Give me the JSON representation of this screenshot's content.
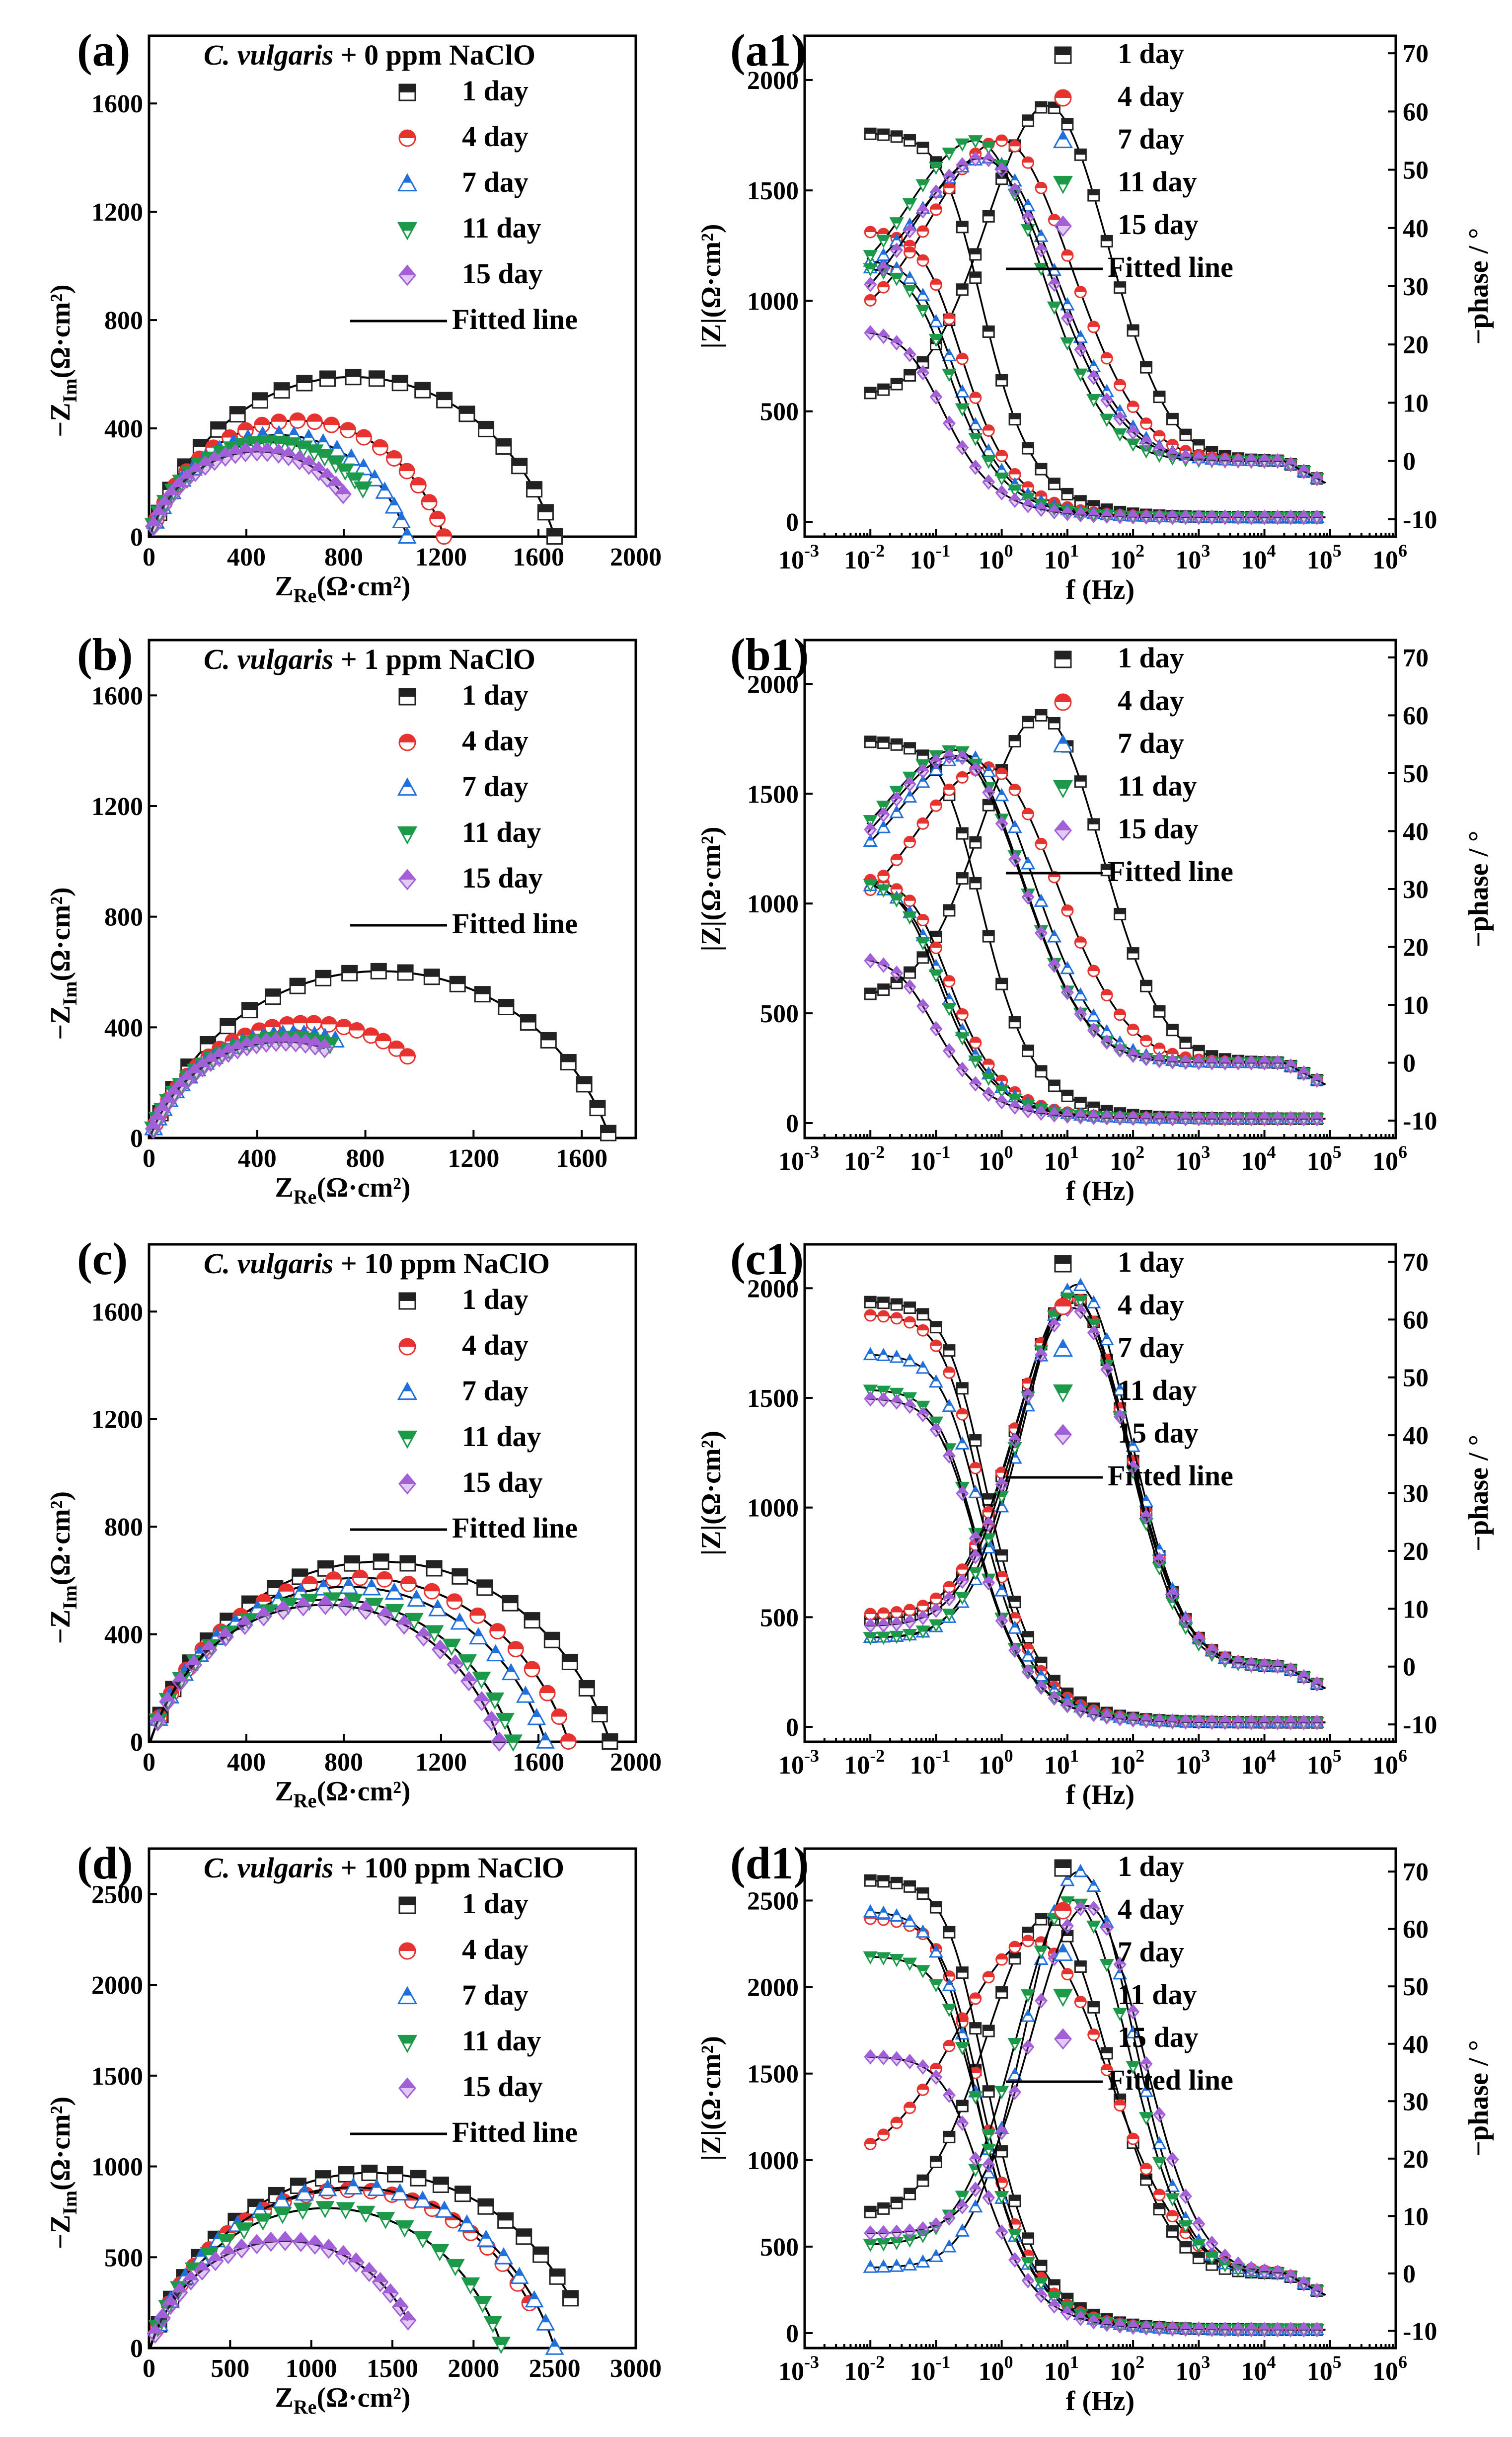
{
  "colors": {
    "d1": "#222222",
    "d4": "#e8322f",
    "d7": "#1f6fdc",
    "d11": "#1c9a4a",
    "d15": "#a25fd8",
    "fit": "#000000"
  },
  "legend": {
    "series": [
      "1 day",
      "4 day",
      "7 day",
      "11 day",
      "15 day"
    ],
    "fitted": "Fitted line"
  },
  "chart_data": [
    {
      "id": "a",
      "panel": "(a)",
      "type": "scatter",
      "kind": "nyquist",
      "title_italic": "C. vulgaris",
      "title_rest": " + 0 ppm NaClO",
      "xlabel_main": "Z",
      "xlabel_sub": "Re",
      "xlabel_unit": "(Ω·cm²)",
      "ylabel_main": "−Z",
      "ylabel_sub": "Im",
      "ylabel_unit": "(Ω·cm²)",
      "xlim": [
        0,
        2000
      ],
      "ylim": [
        0,
        1850
      ],
      "xticks": [
        "0",
        "400",
        "800",
        "1200",
        "1600",
        "2000"
      ],
      "yticks": [
        "0",
        "400",
        "800",
        "1200",
        "1600"
      ],
      "series": [
        {
          "name": "1 day",
          "r": 880,
          "xend": 1720
        },
        {
          "name": "4 day",
          "r": 640,
          "xend": 1230
        },
        {
          "name": "7 day",
          "r": 560,
          "xend": 1120
        },
        {
          "name": "11 day",
          "r": 520,
          "xend": 880
        },
        {
          "name": "15 day",
          "r": 470,
          "xend": 800
        }
      ]
    },
    {
      "id": "a1",
      "panel": "(a1)",
      "type": "line",
      "kind": "bode",
      "xlabel": "f (Hz)",
      "ylabel": "|Z|(Ω·cm²)",
      "y2label": "−phase / °",
      "ylim": [
        0,
        2200
      ],
      "y2lim": [
        -13,
        73
      ],
      "yticks": [
        "0",
        "500",
        "1000",
        "1500",
        "2000"
      ],
      "y2ticks": [
        "-10",
        "0",
        "10",
        "20",
        "30",
        "40",
        "50",
        "60",
        "70"
      ],
      "xticks": [
        "-3",
        "-2",
        "-1",
        "0",
        "1",
        "2",
        "3",
        "4",
        "5",
        "6"
      ],
      "series": [
        {
          "name": "1 day",
          "z0": 1760,
          "zc": 0.3,
          "zinf": 20,
          "p0": 11,
          "pmax": 61,
          "fp": 5,
          "w": 1.3
        },
        {
          "name": "4 day",
          "z0": 1320,
          "zc": 0.15,
          "zinf": 20,
          "p0": 22,
          "pmax": 55,
          "fp": 1,
          "w": 1.5
        },
        {
          "name": "7 day",
          "r": 0,
          "z0": 1190,
          "zc": 0.12,
          "zinf": 20,
          "p0": 27,
          "pmax": 52,
          "fp": 0.6,
          "w": 1.5
        },
        {
          "name": "11 day",
          "z0": 1160,
          "zc": 0.1,
          "zinf": 20,
          "p0": 28,
          "pmax": 55,
          "fp": 0.4,
          "w": 1.4
        },
        {
          "name": "15 day",
          "z0": 870,
          "zc": 0.08,
          "zinf": 20,
          "p0": 22,
          "pmax": 52,
          "fp": 0.5,
          "w": 1.5
        }
      ]
    },
    {
      "id": "b",
      "panel": "(b)",
      "type": "scatter",
      "kind": "nyquist",
      "title_italic": "C. vulgaris",
      "title_rest": " + 1 ppm NaClO",
      "xlabel_main": "Z",
      "xlabel_sub": "Re",
      "xlabel_unit": "(Ω·cm²)",
      "ylabel_main": "−Z",
      "ylabel_sub": "Im",
      "ylabel_unit": "(Ω·cm²)",
      "xlim": [
        0,
        1800
      ],
      "ylim": [
        0,
        1800
      ],
      "xticks": [
        "0",
        "400",
        "800",
        "1200",
        "1600"
      ],
      "yticks": [
        "0",
        "400",
        "800",
        "1200",
        "1600"
      ],
      "series": [
        {
          "name": "1 day",
          "r": 900,
          "xend": 1700
        },
        {
          "name": "4 day",
          "r": 620,
          "xend": 960
        },
        {
          "name": "7 day",
          "r": 560,
          "xend": 690
        },
        {
          "name": "11 day",
          "r": 540,
          "xend": 670
        },
        {
          "name": "15 day",
          "r": 520,
          "xend": 650
        }
      ]
    },
    {
      "id": "b1",
      "panel": "(b1)",
      "type": "line",
      "kind": "bode",
      "xlabel": "f (Hz)",
      "ylabel": "|Z|(Ω·cm²)",
      "y2label": "−phase / °",
      "ylim": [
        0,
        2200
      ],
      "y2lim": [
        -13,
        73
      ],
      "yticks": [
        "0",
        "500",
        "1000",
        "1500",
        "2000"
      ],
      "y2ticks": [
        "-10",
        "0",
        "10",
        "20",
        "30",
        "40",
        "50",
        "60",
        "70"
      ],
      "xticks": [
        "-3",
        "-2",
        "-1",
        "0",
        "1",
        "2",
        "3",
        "4",
        "5",
        "6"
      ],
      "series": [
        {
          "name": "1 day",
          "z0": 1740,
          "zc": 0.3,
          "zinf": 20,
          "p0": 11,
          "pmax": 60,
          "fp": 4,
          "w": 1.3
        },
        {
          "name": "4 day",
          "z0": 1120,
          "zc": 0.1,
          "zinf": 20,
          "p0": 23,
          "pmax": 51,
          "fp": 0.6,
          "w": 1.5
        },
        {
          "name": "7 day",
          "z0": 1100,
          "zc": 0.08,
          "zinf": 20,
          "p0": 31,
          "pmax": 53,
          "fp": 0.3,
          "w": 1.4
        },
        {
          "name": "11 day",
          "z0": 1110,
          "zc": 0.07,
          "zinf": 20,
          "p0": 33,
          "pmax": 54,
          "fp": 0.2,
          "w": 1.4
        },
        {
          "name": "15 day",
          "z0": 760,
          "zc": 0.06,
          "zinf": 20,
          "p0": 31,
          "pmax": 53,
          "fp": 0.2,
          "w": 1.4
        }
      ]
    },
    {
      "id": "c",
      "panel": "(c)",
      "type": "scatter",
      "kind": "nyquist",
      "title_italic": "C. vulgaris",
      "title_rest": " + 10 ppm NaClO",
      "xlabel_main": "Z",
      "xlabel_sub": "Re",
      "xlabel_unit": "(Ω·cm²)",
      "ylabel_main": "−Z",
      "ylabel_sub": "Im",
      "ylabel_unit": "(Ω·cm²)",
      "xlim": [
        0,
        2000
      ],
      "ylim": [
        0,
        1850
      ],
      "xticks": [
        "0",
        "400",
        "800",
        "1200",
        "1600",
        "2000"
      ],
      "yticks": [
        "0",
        "400",
        "800",
        "1200",
        "1600"
      ],
      "series": [
        {
          "name": "1 day",
          "r": 1000,
          "xend": 1940
        },
        {
          "name": "4 day",
          "r": 910,
          "xend": 1780
        },
        {
          "name": "7 day",
          "r": 860,
          "xend": 1700
        },
        {
          "name": "11 day",
          "r": 790,
          "xend": 1540
        },
        {
          "name": "15 day",
          "r": 760,
          "xend": 1500
        }
      ]
    },
    {
      "id": "c1",
      "panel": "(c1)",
      "type": "line",
      "kind": "bode",
      "xlabel": "f (Hz)",
      "ylabel": "|Z|(Ω·cm²)",
      "y2label": "−phase / °",
      "ylim": [
        0,
        2200
      ],
      "y2lim": [
        -13,
        73
      ],
      "yticks": [
        "0",
        "500",
        "1000",
        "1500",
        "2000"
      ],
      "y2ticks": [
        "-10",
        "0",
        "10",
        "20",
        "30",
        "40",
        "50",
        "60",
        "70"
      ],
      "xticks": [
        "-3",
        "-2",
        "-1",
        "0",
        "1",
        "2",
        "3",
        "4",
        "5",
        "6"
      ],
      "series": [
        {
          "name": "1 day",
          "z0": 1940,
          "zc": 0.35,
          "zinf": 20,
          "p0": 8,
          "pmax": 64,
          "fp": 12,
          "w": 1.2
        },
        {
          "name": "4 day",
          "z0": 1880,
          "zc": 0.3,
          "zinf": 20,
          "p0": 9,
          "pmax": 64,
          "fp": 12,
          "w": 1.2
        },
        {
          "name": "7 day",
          "z0": 1700,
          "zc": 0.3,
          "zinf": 20,
          "p0": 5,
          "pmax": 66,
          "fp": 14,
          "w": 1.15
        },
        {
          "name": "11 day",
          "z0": 1540,
          "zc": 0.25,
          "zinf": 20,
          "p0": 5,
          "pmax": 64,
          "fp": 12,
          "w": 1.15
        },
        {
          "name": "15 day",
          "z0": 1500,
          "zc": 0.25,
          "zinf": 20,
          "p0": 7,
          "pmax": 62,
          "fp": 12,
          "w": 1.2
        }
      ]
    },
    {
      "id": "d",
      "panel": "(d)",
      "type": "scatter",
      "kind": "nyquist",
      "title_italic": "C. vulgaris",
      "title_rest": " + 100 ppm NaClO",
      "xlabel_main": "Z",
      "xlabel_sub": "Re",
      "xlabel_unit": "(Ω·cm²)",
      "ylabel_main": "−Z",
      "ylabel_sub": "Im",
      "ylabel_unit": "(Ω·cm²)",
      "xlim": [
        0,
        3000
      ],
      "ylim": [
        0,
        2750
      ],
      "xticks": [
        "0",
        "500",
        "1000",
        "1500",
        "2000",
        "2500",
        "3000"
      ],
      "yticks": [
        "0",
        "500",
        "1000",
        "1500",
        "2000",
        "2500"
      ],
      "series": [
        {
          "name": "1 day",
          "r": 1440,
          "xend": 2600
        },
        {
          "name": "4 day",
          "r": 1300,
          "xend": 2350
        },
        {
          "name": "7 day",
          "r": 1320,
          "xend": 2500
        },
        {
          "name": "11 day",
          "r": 1150,
          "xend": 2170
        },
        {
          "name": "15 day",
          "r": 880,
          "xend": 1600
        }
      ]
    },
    {
      "id": "d1",
      "panel": "(d1)",
      "type": "line",
      "kind": "bode",
      "xlabel": "f (Hz)",
      "ylabel": "|Z|(Ω·cm²)",
      "y2label": "−phase / °",
      "ylim": [
        0,
        2800
      ],
      "y2lim": [
        -13,
        74
      ],
      "yticks": [
        "0",
        "500",
        "1000",
        "1500",
        "2000",
        "2500"
      ],
      "y2ticks": [
        "-10",
        "0",
        "10",
        "20",
        "30",
        "40",
        "50",
        "60",
        "70"
      ],
      "xticks": [
        "-3",
        "-2",
        "-1",
        "0",
        "1",
        "2",
        "3",
        "4",
        "5",
        "6"
      ],
      "series": [
        {
          "name": "1 day",
          "z0": 2620,
          "zc": 0.35,
          "zinf": 20,
          "p0": 10,
          "pmax": 62,
          "fp": 5,
          "w": 1.3
        },
        {
          "name": "4 day",
          "z0": 2400,
          "zc": 0.3,
          "zinf": 20,
          "p0": 19,
          "pmax": 58,
          "fp": 3,
          "w": 1.6
        },
        {
          "name": "7 day",
          "z0": 2440,
          "zc": 0.25,
          "zinf": 20,
          "p0": 1,
          "pmax": 70,
          "fp": 15,
          "w": 1.15
        },
        {
          "name": "11 day",
          "z0": 2180,
          "zc": 0.3,
          "zinf": 20,
          "p0": 5,
          "pmax": 65,
          "fp": 12,
          "w": 1.2
        },
        {
          "name": "15 day",
          "z0": 1600,
          "zc": 0.3,
          "zinf": 20,
          "p0": 7,
          "pmax": 64,
          "fp": 20,
          "w": 1.2
        }
      ]
    }
  ]
}
